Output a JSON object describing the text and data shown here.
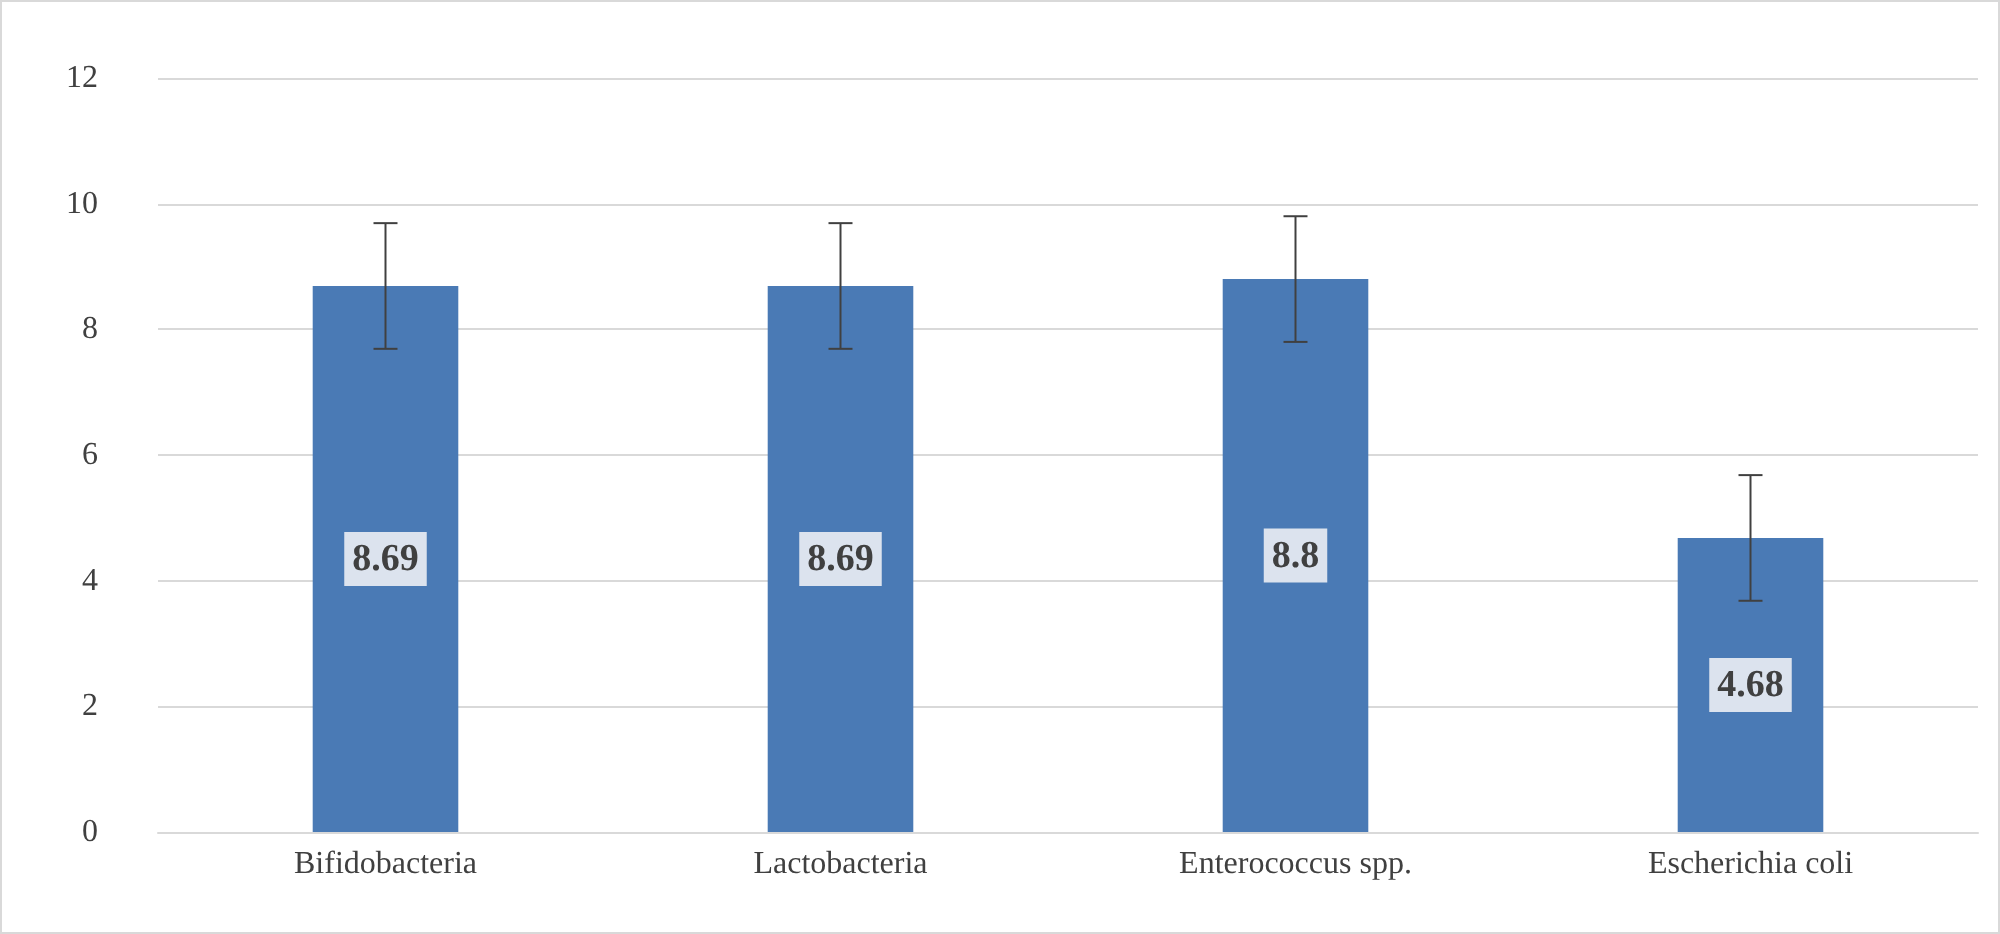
{
  "chart_data": {
    "type": "bar",
    "categories": [
      "Bifidobacteria",
      "Lactobacteria",
      "Enterococcus spp.",
      "Escherichia coli"
    ],
    "values": [
      8.69,
      8.69,
      8.8,
      4.68
    ],
    "errors": [
      1,
      1,
      1,
      1
    ],
    "color": "#4a7ab5",
    "ylim": [
      0,
      12
    ],
    "yticks": [
      0,
      2,
      4,
      6,
      8,
      10,
      12
    ],
    "grid": "y",
    "data_labels": true
  }
}
